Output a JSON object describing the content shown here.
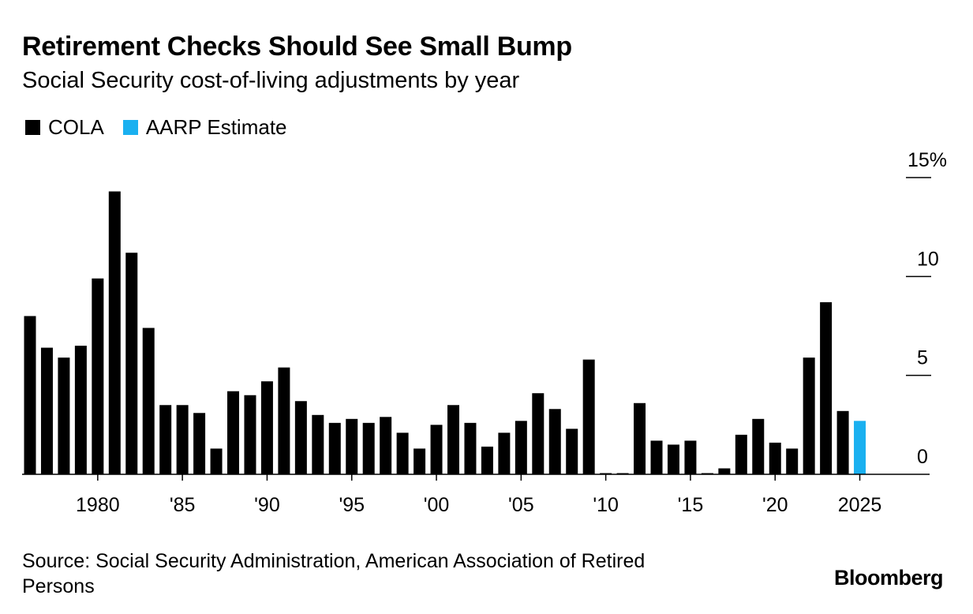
{
  "header": {
    "title": "Retirement Checks Should See Small Bump",
    "subtitle": "Social Security cost-of-living adjustments by year"
  },
  "legend": [
    {
      "label": "COLA",
      "color": "#000000"
    },
    {
      "label": "AARP Estimate",
      "color": "#1ab0f0"
    }
  ],
  "footer": {
    "source": "Source: Social Security Administration, American Association of Retired Persons",
    "brand": "Bloomberg"
  },
  "chart_data": {
    "type": "bar",
    "title": "Retirement Checks Should See Small Bump",
    "subtitle": "Social Security cost-of-living adjustments by year",
    "xlabel": "",
    "ylabel": "",
    "ylim": [
      0,
      15
    ],
    "yticks": [
      0,
      5,
      10,
      15
    ],
    "ytick_labels": [
      "0",
      "5",
      "10",
      "15%"
    ],
    "xticks": [
      1980,
      1985,
      1990,
      1995,
      2000,
      2005,
      2010,
      2015,
      2020,
      2025
    ],
    "xtick_labels": [
      "1980",
      "'85",
      "'90",
      "'95",
      "'00",
      "'05",
      "'10",
      "'15",
      "'20",
      "2025"
    ],
    "grid": false,
    "legend_position": "top-left",
    "series": [
      {
        "name": "COLA",
        "color": "#000000",
        "x": [
          1976,
          1977,
          1978,
          1979,
          1980,
          1981,
          1982,
          1983,
          1984,
          1985,
          1986,
          1987,
          1988,
          1989,
          1990,
          1991,
          1992,
          1993,
          1994,
          1995,
          1996,
          1997,
          1998,
          1999,
          2000,
          2001,
          2002,
          2003,
          2004,
          2005,
          2006,
          2007,
          2008,
          2009,
          2010,
          2011,
          2012,
          2013,
          2014,
          2015,
          2016,
          2017,
          2018,
          2019,
          2020,
          2021,
          2022,
          2023,
          2024
        ],
        "values": [
          8.0,
          6.4,
          5.9,
          6.5,
          9.9,
          14.3,
          11.2,
          7.4,
          3.5,
          3.5,
          3.1,
          1.3,
          4.2,
          4.0,
          4.7,
          5.4,
          3.7,
          3.0,
          2.6,
          2.8,
          2.6,
          2.9,
          2.1,
          1.3,
          2.5,
          3.5,
          2.6,
          1.4,
          2.1,
          2.7,
          4.1,
          3.3,
          2.3,
          5.8,
          0,
          0,
          3.6,
          1.7,
          1.5,
          1.7,
          0,
          0.3,
          2.0,
          2.8,
          1.6,
          1.3,
          5.9,
          8.7,
          3.2
        ]
      },
      {
        "name": "AARP Estimate",
        "color": "#1ab0f0",
        "x": [
          2025
        ],
        "values": [
          2.7
        ]
      }
    ]
  }
}
